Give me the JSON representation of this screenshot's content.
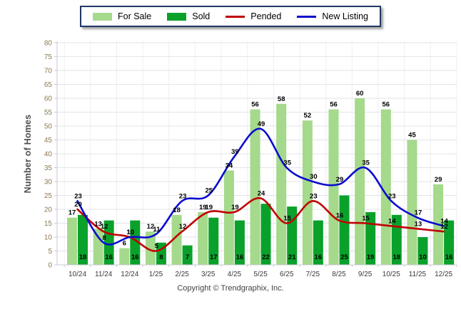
{
  "legend": {
    "items": [
      {
        "label": "For Sale",
        "swatch": "bar"
      },
      {
        "label": "Sold",
        "swatch": "bar"
      },
      {
        "label": "Pended",
        "swatch": "line"
      },
      {
        "label": "New Listing",
        "swatch": "line"
      }
    ]
  },
  "copyright": "Copyright © Trendgraphix, Inc.",
  "chart_data": {
    "type": "bar+line combo",
    "title": "",
    "xlabel": "",
    "ylabel": "Number of Homes",
    "ylim": [
      0,
      80
    ],
    "ytick_step": 5,
    "grid": true,
    "legend_position": "top-center",
    "categories": [
      "10/24",
      "11/24",
      "12/24",
      "1/25",
      "2/25",
      "3/25",
      "4/25",
      "5/25",
      "6/25",
      "7/25",
      "8/25",
      "9/25",
      "10/25",
      "11/25",
      "12/25"
    ],
    "series": [
      {
        "name": "For Sale",
        "type": "bar",
        "color": "#A5D98B",
        "values": [
          17,
          13,
          6,
          12,
          18,
          19,
          34,
          56,
          58,
          52,
          56,
          60,
          56,
          45,
          29
        ]
      },
      {
        "name": "Sold",
        "type": "bar",
        "color": "#0AA12B",
        "values": [
          18,
          16,
          16,
          8,
          7,
          17,
          16,
          22,
          21,
          16,
          25,
          19,
          18,
          10,
          16
        ]
      },
      {
        "name": "Pended",
        "type": "line",
        "color": "#C00000",
        "values": [
          20,
          12,
          10,
          5,
          12,
          19,
          19,
          24,
          15,
          23,
          16,
          15,
          14,
          13,
          12
        ]
      },
      {
        "name": "New Listing",
        "type": "line",
        "color": "#0B0BD0",
        "values": [
          23,
          8,
          10,
          11,
          23,
          25,
          39,
          49,
          35,
          30,
          29,
          35,
          23,
          17,
          14
        ]
      }
    ],
    "colors": {
      "grid_h": "#E3E3EB",
      "grid_v": "#EFEFF3",
      "axis": "#C9C9D4",
      "ytick_text": "#8E7752",
      "xtick_text": "#3a3a3a",
      "legend_border": "#1F3864"
    }
  }
}
